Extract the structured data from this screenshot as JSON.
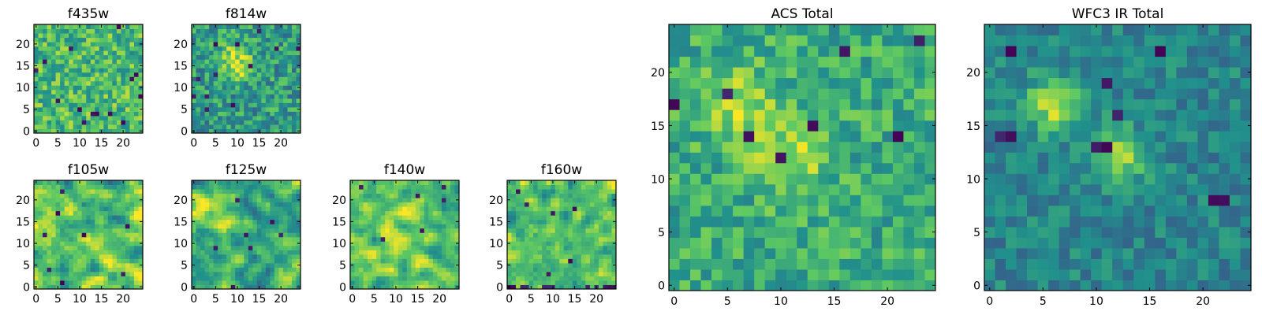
{
  "figure": {
    "background": "#ffffff"
  },
  "colormap": {
    "name": "viridis",
    "stops": [
      "#440154",
      "#3b528b",
      "#21918c",
      "#5ec962",
      "#fde725"
    ]
  },
  "chart_data": [
    {
      "type": "heatmap",
      "title": "f435w",
      "grid_size": 25,
      "xlim": [
        0,
        24
      ],
      "ylim": [
        0,
        24
      ],
      "xticks": [
        0,
        5,
        10,
        15,
        20
      ],
      "yticks": [
        0,
        5,
        10,
        15,
        20
      ],
      "value_range": [
        0,
        1
      ],
      "colormap": "viridis",
      "texture": "fine uniform noise, mostly green-yellow, few dark pixels",
      "mean": 0.68,
      "noise": 0.22,
      "blur": 0,
      "blobs": [],
      "dark_pixels": 14,
      "seed": 11
    },
    {
      "type": "heatmap",
      "title": "f814w",
      "grid_size": 25,
      "xlim": [
        0,
        24
      ],
      "ylim": [
        0,
        24
      ],
      "xticks": [
        0,
        5,
        10,
        15,
        20
      ],
      "yticks": [
        0,
        5,
        10,
        15,
        20
      ],
      "value_range": [
        0,
        1
      ],
      "colormap": "viridis",
      "texture": "noise with faint bright source near center-left",
      "mean": 0.55,
      "noise": 0.22,
      "blur": 0,
      "blobs": [
        {
          "x": 9,
          "y": 17,
          "sigma": 2.5,
          "amp": 0.3
        },
        {
          "x": 11,
          "y": 14,
          "sigma": 2,
          "amp": 0.25
        }
      ],
      "dark_pixels": 12,
      "seed": 27
    },
    {
      "type": "heatmap",
      "title": "f105w",
      "grid_size": 25,
      "xlim": [
        0,
        24
      ],
      "ylim": [
        0,
        24
      ],
      "xticks": [
        0,
        5,
        10,
        15,
        20
      ],
      "yticks": [
        0,
        5,
        10,
        15,
        20
      ],
      "value_range": [
        0,
        1
      ],
      "colormap": "viridis",
      "texture": "smoothed noise, mostly yellow-green",
      "mean": 0.7,
      "noise": 0.28,
      "blur": 1,
      "blobs": [],
      "dark_pixels": 8,
      "seed": 43
    },
    {
      "type": "heatmap",
      "title": "f125w",
      "grid_size": 25,
      "xlim": [
        0,
        24
      ],
      "ylim": [
        0,
        24
      ],
      "xticks": [
        0,
        5,
        10,
        15,
        20
      ],
      "yticks": [
        0,
        5,
        10,
        15,
        20
      ],
      "value_range": [
        0,
        1
      ],
      "colormap": "viridis",
      "texture": "smoothed noise with bright patch upper-left",
      "mean": 0.6,
      "noise": 0.28,
      "blur": 1,
      "blobs": [
        {
          "x": 6,
          "y": 16,
          "sigma": 3,
          "amp": 0.25
        }
      ],
      "dark_pixels": 7,
      "seed": 58
    },
    {
      "type": "heatmap",
      "title": "f140w",
      "grid_size": 25,
      "xlim": [
        0,
        24
      ],
      "ylim": [
        0,
        24
      ],
      "xticks": [
        0,
        5,
        10,
        15,
        20
      ],
      "yticks": [
        0,
        5,
        10,
        15,
        20
      ],
      "value_range": [
        0,
        1
      ],
      "colormap": "viridis",
      "texture": "smoothed noise, bright yellow-green",
      "mean": 0.72,
      "noise": 0.26,
      "blur": 1,
      "blobs": [],
      "dark_pixels": 6,
      "seed": 71
    },
    {
      "type": "heatmap",
      "title": "f160w",
      "grid_size": 25,
      "xlim": [
        0,
        24
      ],
      "ylim": [
        0,
        24
      ],
      "xticks": [
        0,
        5,
        10,
        15,
        20
      ],
      "yticks": [
        0,
        5,
        10,
        15,
        20
      ],
      "value_range": [
        0,
        1
      ],
      "colormap": "viridis",
      "texture": "smoothed noise, bright, dark pixels along bottom edge",
      "mean": 0.72,
      "noise": 0.26,
      "blur": 1,
      "blobs": [],
      "dark_pixels": 6,
      "bottom_dark": true,
      "seed": 89
    },
    {
      "type": "heatmap",
      "title": "ACS Total",
      "grid_size": 25,
      "xlim": [
        0,
        24
      ],
      "ylim": [
        0,
        24
      ],
      "xticks": [
        0,
        5,
        10,
        15,
        20
      ],
      "yticks": [
        0,
        5,
        10,
        15,
        20
      ],
      "value_range": [
        0,
        1
      ],
      "colormap": "viridis",
      "texture": "green-yellow noise with bright sources near (7,17) and (11,12)",
      "mean": 0.62,
      "noise": 0.18,
      "blur": 0,
      "blobs": [
        {
          "x": 6,
          "y": 17,
          "sigma": 2.2,
          "amp": 0.3
        },
        {
          "x": 11,
          "y": 12,
          "sigma": 2.2,
          "amp": 0.3
        }
      ],
      "dark_pixels": 8,
      "seed": 103
    },
    {
      "type": "heatmap",
      "title": "WFC3 IR Total",
      "grid_size": 25,
      "xlim": [
        0,
        24
      ],
      "ylim": [
        0,
        24
      ],
      "xticks": [
        0,
        5,
        10,
        15,
        20
      ],
      "yticks": [
        0,
        5,
        10,
        15,
        20
      ],
      "value_range": [
        0,
        1
      ],
      "colormap": "viridis",
      "texture": "teal noise with bright sources near (6,17) and (12,12)",
      "mean": 0.45,
      "noise": 0.13,
      "blur": 0,
      "blobs": [
        {
          "x": 6,
          "y": 17,
          "sigma": 1.8,
          "amp": 0.45
        },
        {
          "x": 12,
          "y": 12,
          "sigma": 1.8,
          "amp": 0.4
        }
      ],
      "dark_pixels": 10,
      "seed": 131
    }
  ]
}
